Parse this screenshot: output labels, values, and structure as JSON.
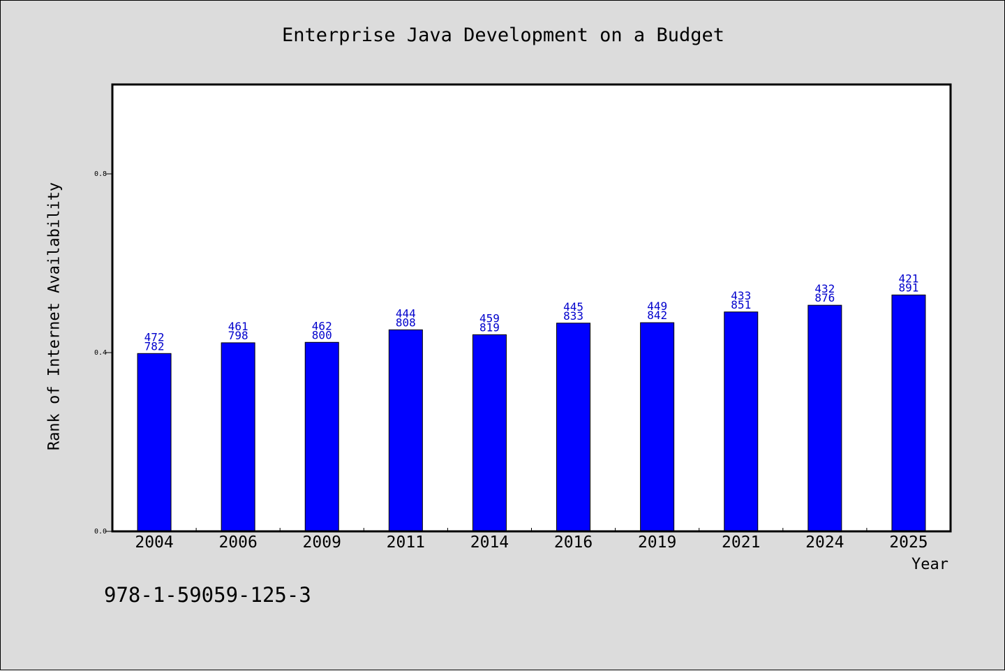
{
  "chart_data": {
    "type": "bar",
    "title": "Enterprise Java Development on a Budget",
    "xlabel": "Year",
    "ylabel": "Rank of Internet Availability",
    "ylim": [
      0,
      1.0
    ],
    "yticks": [
      "0.0",
      "0.4",
      "0.8"
    ],
    "categories": [
      "2004",
      "2006",
      "2009",
      "2011",
      "2014",
      "2016",
      "2019",
      "2021",
      "2024",
      "2025"
    ],
    "values": [
      0.398,
      0.422,
      0.423,
      0.451,
      0.44,
      0.466,
      0.467,
      0.491,
      0.506,
      0.529
    ],
    "labels_top": [
      "472",
      "461",
      "462",
      "444",
      "459",
      "445",
      "449",
      "433",
      "432",
      "421"
    ],
    "labels_bottom": [
      "782",
      "798",
      "800",
      "808",
      "819",
      "833",
      "842",
      "851",
      "876",
      "891"
    ],
    "bar_color": "#0000ff",
    "label_color": "#0000cc",
    "grid": false,
    "legend": "none"
  },
  "footer": {
    "isbn": "978-1-59059-125-3"
  }
}
